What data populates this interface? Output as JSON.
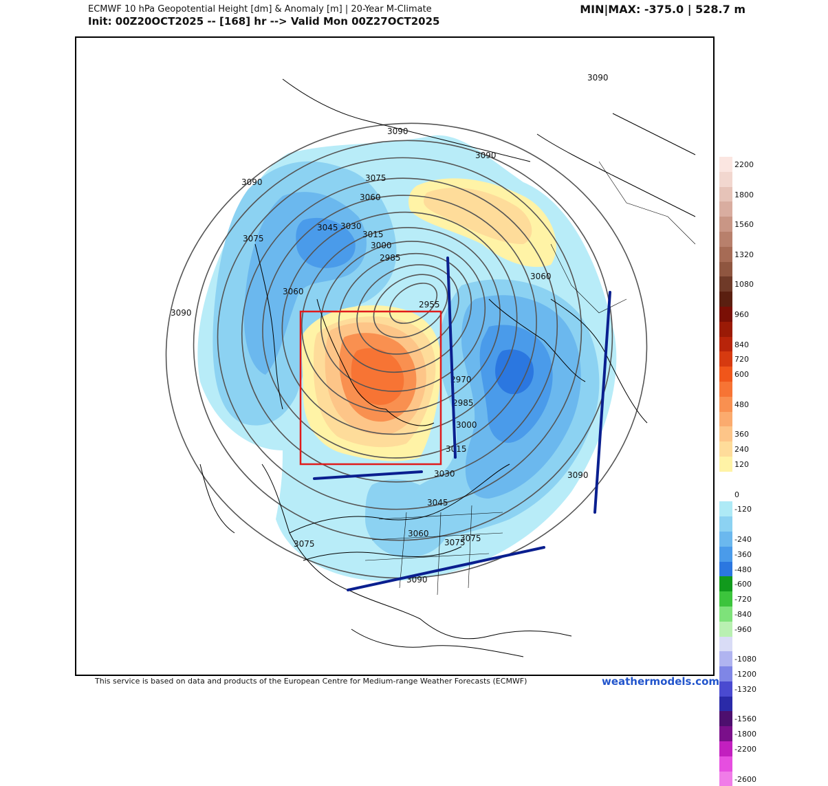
{
  "header": {
    "title_line1": "ECMWF 10 hPa Geopotential Height [dm] & Anomaly [m] | 20-Year M-Climate",
    "title_line2": "Init: 00Z20OCT2025 -- [168] hr --> Valid Mon 00Z27OCT2025",
    "minmax": "MIN|MAX: -375.0 | 528.7 m"
  },
  "legend": {
    "items": [
      {
        "label": "2200",
        "color": "#fbe6e1"
      },
      {
        "label": "",
        "color": "#f2d7cf"
      },
      {
        "label": "1800",
        "color": "#e6c3b8"
      },
      {
        "label": "",
        "color": "#d9ada0"
      },
      {
        "label": "1560",
        "color": "#c99685"
      },
      {
        "label": "",
        "color": "#b8806c"
      },
      {
        "label": "1320",
        "color": "#a66b55"
      },
      {
        "label": "",
        "color": "#8f5640"
      },
      {
        "label": "1080",
        "color": "#6f3a28"
      },
      {
        "label": "",
        "color": "#5a1f10"
      },
      {
        "label": "960",
        "color": "#7a0f05"
      },
      {
        "label": "",
        "color": "#9a1a06"
      },
      {
        "label": "840",
        "color": "#b8240a"
      },
      {
        "label": "720",
        "color": "#d63a10"
      },
      {
        "label": "600",
        "color": "#f0561a"
      },
      {
        "label": "",
        "color": "#f77434"
      },
      {
        "label": "480",
        "color": "#f99050"
      },
      {
        "label": "",
        "color": "#fbab6e"
      },
      {
        "label": "360",
        "color": "#fdc588"
      },
      {
        "label": "240",
        "color": "#fedc9a"
      },
      {
        "label": "120",
        "color": "#fff3a6"
      },
      {
        "label": "",
        "color": "#ffffff"
      },
      {
        "label": "0",
        "color": "#ffffff"
      },
      {
        "label": "-120",
        "color": "#aeeaf6"
      },
      {
        "label": "",
        "color": "#8cd2f2"
      },
      {
        "label": "-240",
        "color": "#6bb8ee"
      },
      {
        "label": "-360",
        "color": "#4a9bea"
      },
      {
        "label": "-480",
        "color": "#2b77e0"
      },
      {
        "label": "-600",
        "color": "#119a1c"
      },
      {
        "label": "-720",
        "color": "#3cc43c"
      },
      {
        "label": "-840",
        "color": "#7ee27a"
      },
      {
        "label": "-960",
        "color": "#b9f0b2"
      },
      {
        "label": "",
        "color": "#d9dcf6"
      },
      {
        "label": "-1080",
        "color": "#b0b4f0"
      },
      {
        "label": "-1200",
        "color": "#7f86e6"
      },
      {
        "label": "-1320",
        "color": "#4a4ad0"
      },
      {
        "label": "",
        "color": "#2a2aa8"
      },
      {
        "label": "-1560",
        "color": "#4d0f6e"
      },
      {
        "label": "-1800",
        "color": "#7a0f8a"
      },
      {
        "label": "-2200",
        "color": "#c21fbf"
      },
      {
        "label": "",
        "color": "#e64ee0"
      },
      {
        "label": "-2600",
        "color": "#f07ce8"
      }
    ]
  },
  "contour_labels": [
    {
      "text": "3090"
    },
    {
      "text": "3090"
    },
    {
      "text": "3090"
    },
    {
      "text": "3090"
    },
    {
      "text": "3090"
    },
    {
      "text": "3090"
    },
    {
      "text": "3090"
    },
    {
      "text": "3075"
    },
    {
      "text": "3075"
    },
    {
      "text": "3075"
    },
    {
      "text": "3075"
    },
    {
      "text": "3075"
    },
    {
      "text": "3060"
    },
    {
      "text": "3060"
    },
    {
      "text": "3060"
    },
    {
      "text": "3060"
    },
    {
      "text": "3045"
    },
    {
      "text": "3045"
    },
    {
      "text": "3030"
    },
    {
      "text": "3030"
    },
    {
      "text": "3015"
    },
    {
      "text": "3015"
    },
    {
      "text": "3000"
    },
    {
      "text": "3000"
    },
    {
      "text": "2985"
    },
    {
      "text": "2985"
    },
    {
      "text": "2955"
    },
    {
      "text": "2970"
    }
  ],
  "footer": {
    "credit": "This service is based on data and products of the European Centre for Medium-range Weather Forecasts (ECMWF)",
    "brand": "weathermodels.com"
  },
  "annotation_colors": {
    "box": "#e01b1b",
    "lines": "#0a1f8f"
  }
}
